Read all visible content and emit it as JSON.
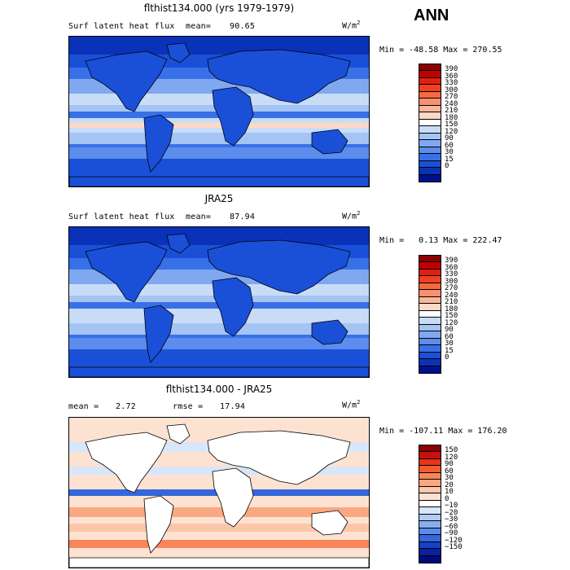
{
  "season": "ANN",
  "panels": [
    {
      "title": "flthist134.000 (yrs 1979-1979)",
      "left_label": "Surf latent heat flux",
      "stat_label": "mean=",
      "stat_value": "90.65",
      "unit_base": "W/m",
      "unit_exp": "2",
      "minmax": "Min = -48.58 Max = 270.55",
      "colors": [
        "#8b0000",
        "#c00000",
        "#e02010",
        "#f04020",
        "#f46a40",
        "#f89070",
        "#fab59a",
        "#fcd8c6",
        "#ffffff",
        "#c8dcf8",
        "#a4c4f4",
        "#80a8f0",
        "#5c8cec",
        "#3870e8",
        "#1a50d8",
        "#0a32b8",
        "#00108c"
      ],
      "levels": [
        "390",
        "360",
        "330",
        "300",
        "270",
        "240",
        "210",
        "180",
        "150",
        "120",
        "90",
        "60",
        "30",
        "15",
        "0"
      ],
      "map_style": "positive"
    },
    {
      "title": "JRA25",
      "left_label": "Surf latent heat flux",
      "stat_label": "mean=",
      "stat_value": "87.94",
      "unit_base": "W/m",
      "unit_exp": "2",
      "minmax": "Min =   0.13 Max = 222.47",
      "colors": [
        "#8b0000",
        "#c00000",
        "#e02010",
        "#f04020",
        "#f46a40",
        "#f89070",
        "#fab59a",
        "#fcd8c6",
        "#ffffff",
        "#c8dcf8",
        "#a4c4f4",
        "#80a8f0",
        "#5c8cec",
        "#3870e8",
        "#1a50d8",
        "#0a32b8",
        "#00108c"
      ],
      "levels": [
        "390",
        "360",
        "330",
        "300",
        "270",
        "240",
        "210",
        "180",
        "150",
        "120",
        "90",
        "60",
        "30",
        "15",
        "0"
      ],
      "map_style": "positive2"
    },
    {
      "title": "flthist134.000 - JRA25",
      "left_label": "mean =",
      "left_value": "2.72",
      "stat_label": "rmse =",
      "stat_value": "17.94",
      "unit_base": "W/m",
      "unit_exp": "2",
      "minmax": "Min = -107.11 Max = 176.20",
      "colors": [
        "#8b0000",
        "#c81010",
        "#e83418",
        "#f45c30",
        "#f88658",
        "#faa882",
        "#fcc6aa",
        "#fde2d2",
        "#ffffff",
        "#d8e6fa",
        "#b0cbf4",
        "#88aeee",
        "#5c8ae6",
        "#3466dc",
        "#1840c4",
        "#0a20a0",
        "#000a7a"
      ],
      "levels": [
        "150",
        "120",
        "90",
        "60",
        "30",
        "20",
        "10",
        "0",
        "−10",
        "−20",
        "−30",
        "−60",
        "−90",
        "−120",
        "−150"
      ],
      "map_style": "diff"
    }
  ]
}
